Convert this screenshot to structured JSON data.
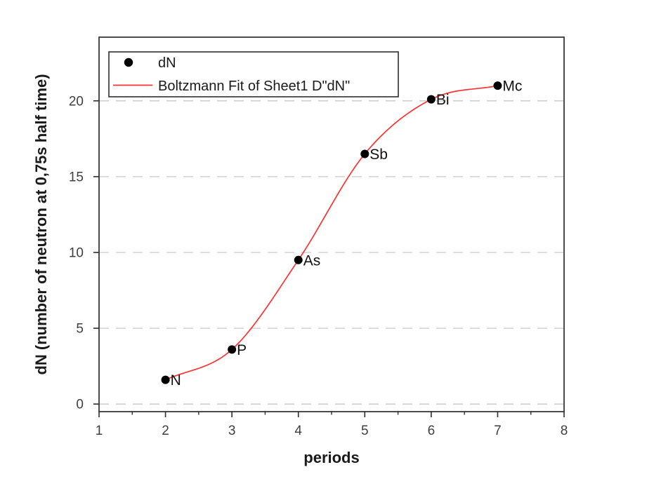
{
  "figure": {
    "background": "#ffffff"
  },
  "chart_data": {
    "type": "scatter",
    "title": "",
    "xlabel": "periods",
    "ylabel": "dN (number of neutron at 0,75s half time)",
    "xlim": [
      1,
      8
    ],
    "ylim": [
      -0.5,
      24.2
    ],
    "x_major_ticks": [
      1,
      2,
      3,
      4,
      5,
      6,
      7,
      8
    ],
    "x_minor_ticks": [
      1.5,
      2.5,
      3.5,
      4.5,
      5.5,
      6.5,
      7.5
    ],
    "y_major_ticks": [
      0,
      5,
      10,
      15,
      20
    ],
    "grid": {
      "horizontal_dashed": true,
      "vertical": false,
      "color": "#c9c9c9"
    },
    "legend": {
      "position": "top-left",
      "entries": [
        {
          "label": "dN",
          "marker": "filled-circle",
          "color": "#000000"
        },
        {
          "label": "Boltzmann Fit of Sheet1 D\"dN\"",
          "marker": "line",
          "color": "#ff3232"
        }
      ]
    },
    "series": [
      {
        "name": "dN",
        "type": "scatter",
        "marker": "circle",
        "color": "#000000",
        "points": [
          {
            "x": 2,
            "y": 1.6,
            "label": "N"
          },
          {
            "x": 3,
            "y": 3.6,
            "label": "P"
          },
          {
            "x": 4,
            "y": 9.5,
            "label": "As"
          },
          {
            "x": 5,
            "y": 16.5,
            "label": "Sb"
          },
          {
            "x": 6,
            "y": 20.1,
            "label": "Bi"
          },
          {
            "x": 7,
            "y": 21.0,
            "label": "Mc"
          }
        ]
      },
      {
        "name": "Boltzmann Fit of Sheet1 D\"dN\"",
        "type": "fit-line",
        "color": "#ff3232",
        "fit": {
          "model": "Boltzmann",
          "x_start": 2,
          "x_end": 7
        }
      }
    ],
    "colors": {
      "axis": "#2d2d2d",
      "tick_label": "#3f3f3f",
      "axis_title": "#1a1a1a",
      "point_label": "#111111",
      "fit_line": "#ff3232",
      "marker": "#000000",
      "grid": "#c9c9c9"
    }
  }
}
